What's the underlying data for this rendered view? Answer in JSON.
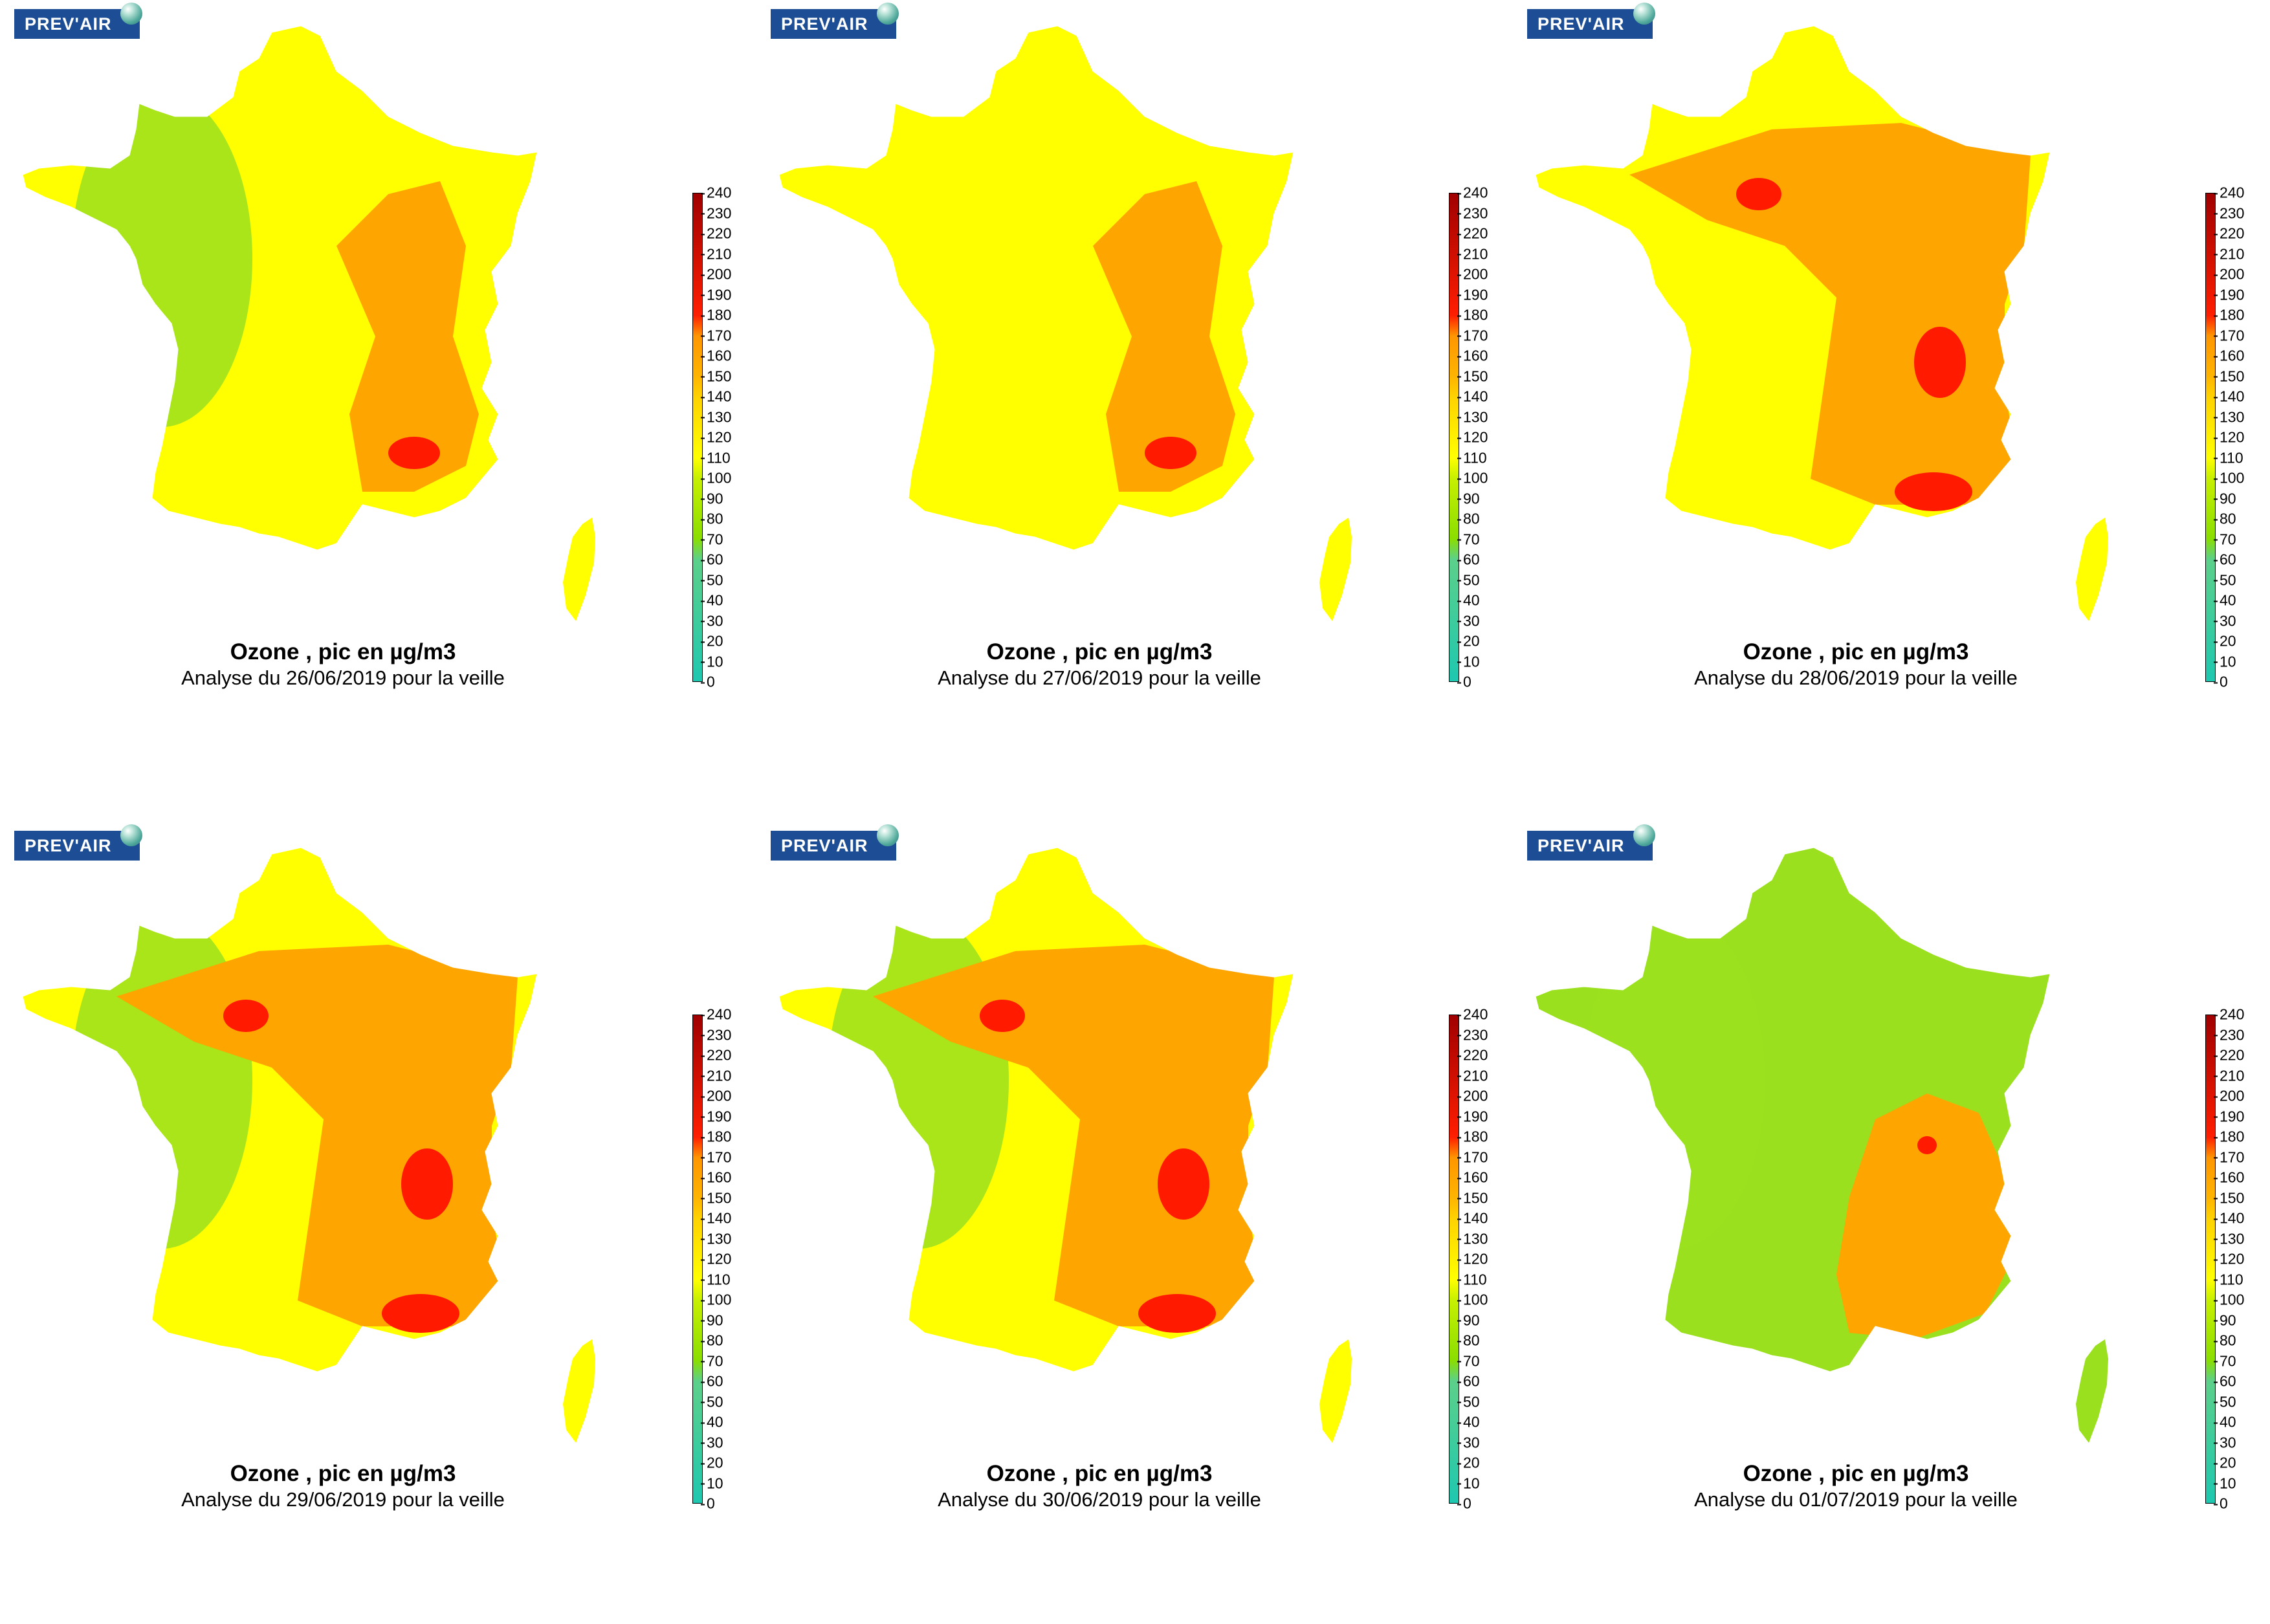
{
  "logo_text": "PREV'AIR",
  "colorbar": {
    "ticks": [
      "240",
      "230",
      "220",
      "210",
      "200",
      "190",
      "180",
      "170",
      "160",
      "150",
      "140",
      "130",
      "120",
      "110",
      "100",
      "90",
      "80",
      "70",
      "60",
      "50",
      "40",
      "30",
      "20",
      "10",
      "0"
    ],
    "range": [
      0,
      240
    ],
    "stops": [
      {
        "value": 0,
        "color": "#1ec8b0"
      },
      {
        "value": 60,
        "color": "#5cd08a"
      },
      {
        "value": 70,
        "color": "#8ade00"
      },
      {
        "value": 100,
        "color": "#c8f000"
      },
      {
        "value": 110,
        "color": "#ffff00"
      },
      {
        "value": 140,
        "color": "#ffd200"
      },
      {
        "value": 150,
        "color": "#ffb400"
      },
      {
        "value": 170,
        "color": "#ff9600"
      },
      {
        "value": 180,
        "color": "#ff1e00"
      },
      {
        "value": 240,
        "color": "#a00000"
      }
    ]
  },
  "panels": [
    {
      "title": "Ozone , pic en µg/m3",
      "subtitle": "Analyse du 26/06/2019 pour la veille",
      "base": "yellow",
      "west": "green",
      "hot": "orange-east"
    },
    {
      "title": "Ozone , pic en µg/m3",
      "subtitle": "Analyse du 27/06/2019 pour la veille",
      "base": "yellow",
      "west": "yellow",
      "hot": "orange-east"
    },
    {
      "title": "Ozone , pic en µg/m3",
      "subtitle": "Analyse du 28/06/2019 pour la veille",
      "base": "yellow",
      "west": "yellow",
      "hot": "orange-wide"
    },
    {
      "title": "Ozone , pic en µg/m3",
      "subtitle": "Analyse du 29/06/2019 pour la veille",
      "base": "yellow",
      "west": "green",
      "hot": "orange-wide"
    },
    {
      "title": "Ozone , pic en µg/m3",
      "subtitle": "Analyse du 30/06/2019 pour la veille",
      "base": "yellow",
      "west": "green",
      "hot": "orange-wide"
    },
    {
      "title": "Ozone , pic en µg/m3",
      "subtitle": "Analyse du 01/07/2019 pour la veille",
      "base": "green",
      "west": "green",
      "hot": "orange-southeast"
    }
  ]
}
